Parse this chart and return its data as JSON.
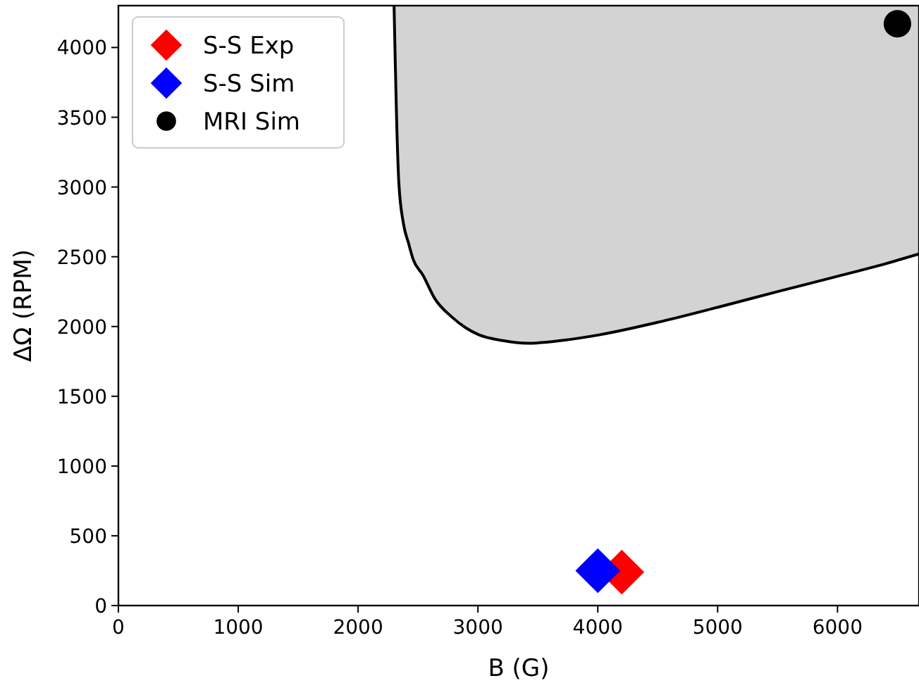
{
  "chart_data": {
    "type": "scatter",
    "xlabel": "B (G)",
    "ylabel": "ΔΩ (RPM)",
    "xlim": [
      0,
      6680
    ],
    "ylim": [
      0,
      4300
    ],
    "xticks": [
      0,
      1000,
      2000,
      3000,
      4000,
      5000,
      6000
    ],
    "yticks": [
      0,
      500,
      1000,
      1500,
      2000,
      2500,
      3000,
      3500,
      4000
    ],
    "grid": false,
    "legend": "top left",
    "series": [
      {
        "type": "line",
        "color": "#000000",
        "marker": "none",
        "x": [
          2300,
          2310,
          2320,
          2340,
          2380,
          2420,
          2460,
          2540,
          2640,
          2780,
          2900,
          3010,
          3200,
          3420,
          3700,
          4010,
          4500,
          5010,
          5500,
          6000,
          6400,
          6680
        ],
        "values": [
          4300,
          3900,
          3530,
          3030,
          2730,
          2600,
          2480,
          2370,
          2200,
          2070,
          1990,
          1940,
          1900,
          1880,
          1900,
          1940,
          2030,
          2140,
          2250,
          2360,
          2450,
          2520
        ],
        "lower": [
          4300,
          3900,
          3530,
          3030,
          2730,
          2600,
          2480,
          2370,
          2200,
          2070,
          1990,
          1940,
          1900,
          1880,
          1900,
          1940,
          2030,
          2140,
          2250,
          2360,
          2450,
          2520
        ],
        "upper": [
          4300,
          4300,
          4300,
          4300,
          4300,
          4300,
          4300,
          4300,
          4300,
          4300,
          4300,
          4300,
          4300,
          4300,
          4300,
          4300,
          4300,
          4300,
          4300,
          4300,
          4300,
          4300
        ]
      },
      {
        "name": "S-S Exp",
        "color": "#ff0000",
        "marker": "diamond",
        "x": [
          4200
        ],
        "values": [
          240
        ]
      },
      {
        "name": "S-S Sim",
        "color": "#0000ff",
        "marker": "diamond",
        "x": [
          4000
        ],
        "values": [
          250
        ]
      },
      {
        "name": "MRI Sim",
        "color": "#000000",
        "marker": "circle",
        "x": [
          6500
        ],
        "values": [
          4170
        ]
      }
    ]
  }
}
